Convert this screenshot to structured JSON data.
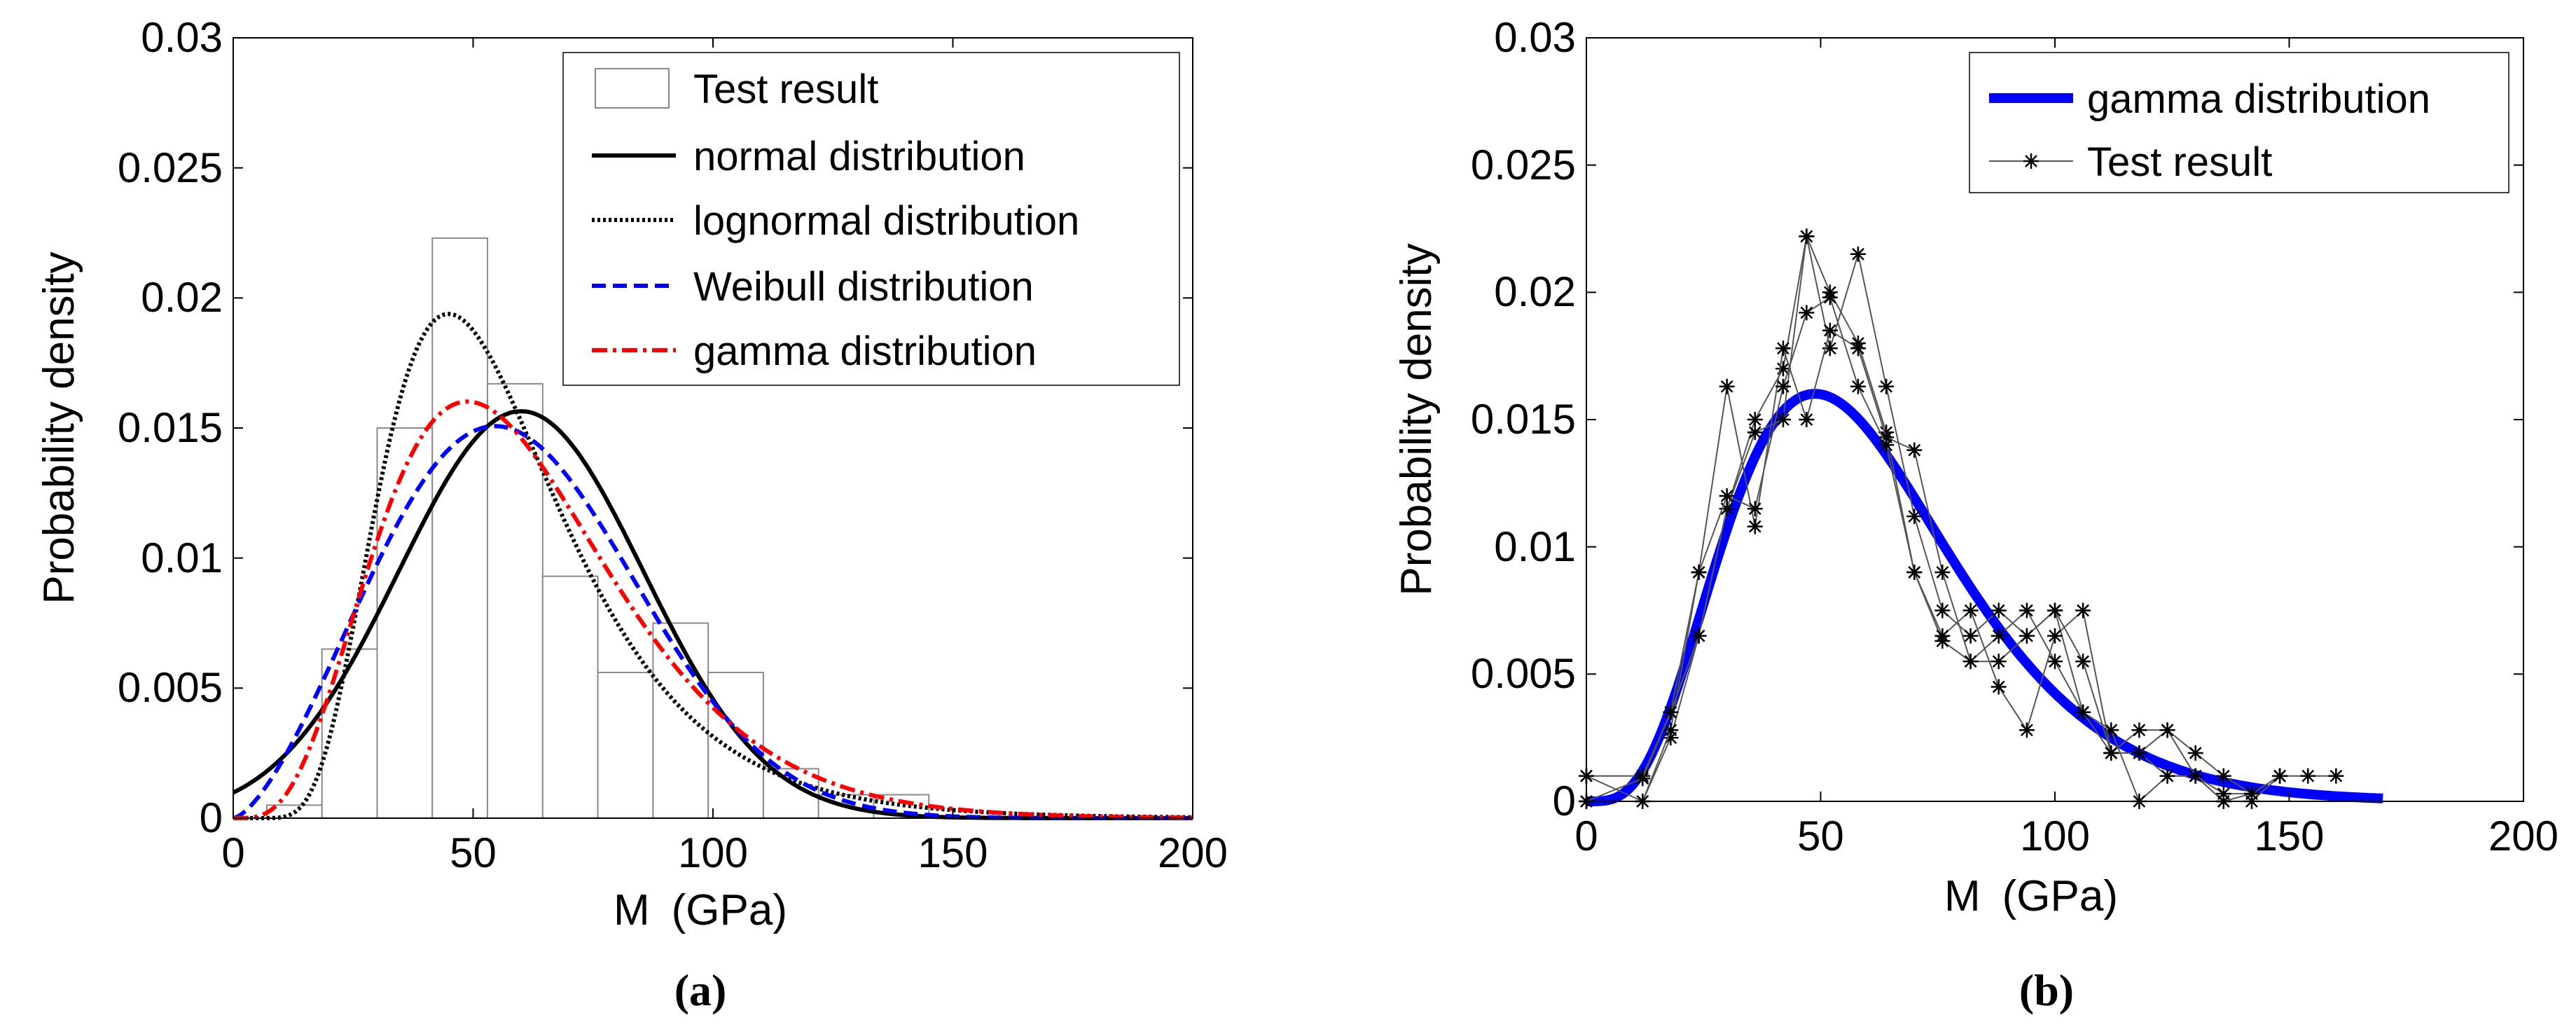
{
  "chart_data": [
    {
      "type": "bar",
      "panel_label": "(a)",
      "xlabel": "M (GPa)",
      "ylabel": "Probability density",
      "xlim": [
        0,
        200
      ],
      "ylim": [
        0,
        0.03
      ],
      "xticks": [
        "0",
        "50",
        "100",
        "150",
        "200"
      ],
      "yticks": [
        "0",
        "0.005",
        "0.01",
        "0.015",
        "0.02",
        "0.025",
        "0.03"
      ],
      "xtick_values": [
        0,
        50,
        100,
        150,
        200
      ],
      "ytick_values": [
        0,
        0.005,
        0.01,
        0.015,
        0.02,
        0.025,
        0.03
      ],
      "legend_position": "top-right",
      "histogram": {
        "name": "Test result",
        "bin_width": 11.5,
        "bins": [
          {
            "x0": 7,
            "value": 0.0005
          },
          {
            "x0": 18.5,
            "value": 0.0065
          },
          {
            "x0": 30,
            "value": 0.015
          },
          {
            "x0": 41.5,
            "value": 0.0223
          },
          {
            "x0": 53,
            "value": 0.0167
          },
          {
            "x0": 64.5,
            "value": 0.0093
          },
          {
            "x0": 76,
            "value": 0.0056
          },
          {
            "x0": 87.5,
            "value": 0.0075
          },
          {
            "x0": 99,
            "value": 0.0056
          },
          {
            "x0": 110.5,
            "value": 0.0019
          },
          {
            "x0": 122,
            "value": 0.0009
          },
          {
            "x0": 133.5,
            "value": 0.0009
          }
        ]
      },
      "series": [
        {
          "name": "normal distribution",
          "color": "#000000",
          "style": "solid",
          "dist": "normal",
          "params": {
            "mu": 60,
            "sigma": 25.5
          }
        },
        {
          "name": "lognormal distribution",
          "color": "#000000",
          "style": "dotted",
          "dist": "lognormal",
          "params": {
            "mu": 3.98,
            "sigma": 0.42
          }
        },
        {
          "name": "Weibull distribution",
          "color": "#0000ff",
          "style": "dashed",
          "dist": "weibull",
          "params": {
            "k": 2.5,
            "lambda": 67
          }
        },
        {
          "name": "gamma distribution",
          "color": "#ff0000",
          "style": "dashdot",
          "dist": "gamma",
          "params": {
            "k": 5,
            "theta": 12.2
          }
        }
      ]
    },
    {
      "type": "line",
      "panel_label": "(b)",
      "xlabel": "M (GPa)",
      "ylabel": "Probability density",
      "xlim": [
        0,
        200
      ],
      "ylim": [
        0,
        0.03
      ],
      "xticks": [
        "0",
        "50",
        "100",
        "150",
        "200"
      ],
      "yticks": [
        "0",
        "0.005",
        "0.01",
        "0.015",
        "0.02",
        "0.025",
        "0.03"
      ],
      "xtick_values": [
        0,
        50,
        100,
        150,
        200
      ],
      "ytick_values": [
        0,
        0.005,
        0.01,
        0.015,
        0.02,
        0.025,
        0.03
      ],
      "legend_position": "top-right",
      "series": [
        {
          "name": "gamma distribution",
          "color": "#0000ff",
          "style": "thick",
          "dist": "gamma",
          "params": {
            "k": 5,
            "theta": 12.2
          },
          "x_max": 170
        },
        {
          "name": "Test result",
          "color": "#555555",
          "style": "markers",
          "runs": [
            [
              [
                0,
                0.001
              ],
              [
                12,
                0.001
              ],
              [
                18,
                0.0035
              ],
              [
                24,
                0.0065
              ],
              [
                30,
                0.0115
              ],
              [
                36,
                0.015
              ],
              [
                42,
                0.017
              ],
              [
                47,
                0.0222
              ],
              [
                52,
                0.02
              ],
              [
                58,
                0.018
              ],
              [
                64,
                0.0145
              ],
              [
                70,
                0.009
              ],
              [
                76,
                0.0063
              ],
              [
                82,
                0.0055
              ],
              [
                88,
                0.0065
              ],
              [
                94,
                0.0075
              ],
              [
                100,
                0.0055
              ],
              [
                106,
                0.0035
              ],
              [
                112,
                0.0019
              ],
              [
                118,
                0.0019
              ],
              [
                124,
                0.001
              ],
              [
                130,
                0.001
              ],
              [
                136,
                0.0003
              ],
              [
                142,
                0.0003
              ],
              [
                148,
                0.001
              ],
              [
                154,
                0.001
              ],
              [
                160,
                0.001
              ]
            ],
            [
              [
                0,
                0
              ],
              [
                12,
                0
              ],
              [
                18,
                0.0025
              ],
              [
                24,
                0.0065
              ],
              [
                30,
                0.0115
              ],
              [
                36,
                0.0145
              ],
              [
                42,
                0.015
              ],
              [
                47,
                0.0222
              ],
              [
                52,
                0.0178
              ],
              [
                58,
                0.0215
              ],
              [
                64,
                0.0163
              ],
              [
                70,
                0.0112
              ],
              [
                76,
                0.0075
              ],
              [
                82,
                0.0065
              ],
              [
                88,
                0.0075
              ],
              [
                94,
                0.0065
              ],
              [
                100,
                0.0075
              ],
              [
                106,
                0.0035
              ],
              [
                112,
                0.0028
              ],
              [
                118,
                0.0
              ],
              [
                124,
                0.001
              ],
              [
                130,
                0.001
              ],
              [
                136,
                0.0
              ],
              [
                142,
                0.0
              ],
              [
                148,
                0.001
              ]
            ],
            [
              [
                0,
                0.001
              ],
              [
                12,
                0.0
              ],
              [
                18,
                0.0028
              ],
              [
                24,
                0.009
              ],
              [
                30,
                0.0163
              ],
              [
                36,
                0.0108
              ],
              [
                42,
                0.0178
              ],
              [
                47,
                0.015
              ],
              [
                52,
                0.0185
              ],
              [
                58,
                0.0178
              ],
              [
                64,
                0.0143
              ],
              [
                70,
                0.0138
              ],
              [
                76,
                0.009
              ],
              [
                82,
                0.0055
              ],
              [
                88,
                0.0055
              ],
              [
                94,
                0.0065
              ],
              [
                100,
                0.0075
              ],
              [
                106,
                0.0055
              ],
              [
                112,
                0.0019
              ],
              [
                118,
                0.0028
              ],
              [
                124,
                0.0028
              ],
              [
                130,
                0.001
              ],
              [
                136,
                0.0
              ],
              [
                142,
                0.0003
              ],
              [
                148,
                0.001
              ]
            ],
            [
              [
                0,
                0
              ],
              [
                12,
                0.0009
              ],
              [
                18,
                0.0035
              ],
              [
                24,
                0.009
              ],
              [
                30,
                0.012
              ],
              [
                36,
                0.0115
              ],
              [
                42,
                0.0163
              ],
              [
                47,
                0.0192
              ],
              [
                52,
                0.0198
              ],
              [
                58,
                0.0163
              ],
              [
                64,
                0.014
              ],
              [
                70,
                0.009
              ],
              [
                76,
                0.0065
              ],
              [
                82,
                0.0075
              ],
              [
                88,
                0.0045
              ],
              [
                94,
                0.0028
              ],
              [
                100,
                0.0065
              ],
              [
                106,
                0.0075
              ],
              [
                112,
                0.0019
              ],
              [
                118,
                0.0019
              ],
              [
                124,
                0.0028
              ],
              [
                130,
                0.0019
              ],
              [
                136,
                0.001
              ],
              [
                142,
                0.0003
              ]
            ]
          ]
        }
      ]
    }
  ]
}
